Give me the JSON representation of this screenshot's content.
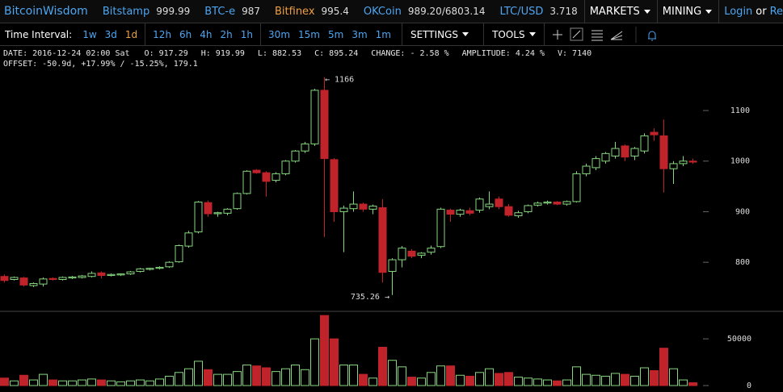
{
  "header": {
    "brand": "BitcoinWisdom",
    "tickers": [
      {
        "name": "Bitstamp",
        "price": "999.99",
        "highlight": false
      },
      {
        "name": "BTC-e",
        "price": "987",
        "highlight": false
      },
      {
        "name": "Bitfinex",
        "price": "995.4",
        "highlight": true
      },
      {
        "name": "OKCoin",
        "price": "989.20/6803.14",
        "highlight": false
      },
      {
        "name": "LTC/USD",
        "price": "3.718",
        "highlight": false
      }
    ],
    "menus": [
      "MARKETS",
      "MINING"
    ],
    "login": "Login",
    "or": "or",
    "register": "Register"
  },
  "toolbar": {
    "label": "Time Interval:",
    "groups": [
      [
        {
          "label": "1w",
          "active": false
        },
        {
          "label": "3d",
          "active": false
        },
        {
          "label": "1d",
          "active": true
        }
      ],
      [
        {
          "label": "12h",
          "active": false
        },
        {
          "label": "6h",
          "active": false
        },
        {
          "label": "4h",
          "active": false
        },
        {
          "label": "2h",
          "active": false
        },
        {
          "label": "1h",
          "active": false
        }
      ],
      [
        {
          "label": "30m",
          "active": false
        },
        {
          "label": "15m",
          "active": false
        },
        {
          "label": "5m",
          "active": false
        },
        {
          "label": "3m",
          "active": false
        },
        {
          "label": "1m",
          "active": false
        }
      ]
    ],
    "menus": [
      "SETTINGS",
      "TOOLS"
    ]
  },
  "info": [
    "DATE: 2016-12-24 02:00 Sat",
    "O: 917.29",
    "H: 919.99",
    "L: 882.53",
    "C: 895.24",
    "CHANGE: - 2.58 %",
    "AMPLITUDE: 4.24 %",
    "V: 7140"
  ],
  "offset": "OFFSET: -50.9d, +17.99% / -15.25%, 179.1",
  "chart_data": {
    "type": "candlestick",
    "up_color": "#86d67e",
    "down_color": "#c1232b",
    "open": [
      772,
      766,
      769,
      754,
      757,
      768,
      766,
      769,
      770,
      772,
      779,
      774,
      775,
      777,
      782,
      786,
      788,
      791,
      801,
      832,
      860,
      918,
      896,
      897,
      906,
      936,
      982,
      977,
      962,
      975,
      1000,
      1020,
      1034,
      1140,
      1003,
      900,
      906,
      915,
      905,
      908,
      782,
      805,
      822,
      814,
      820,
      831,
      903,
      895,
      902,
      903,
      910,
      925,
      910,
      892,
      900,
      913,
      917,
      919,
      915,
      920,
      975,
      987,
      1000,
      1010,
      1030,
      1010,
      1020,
      1057,
      1050,
      985,
      995,
      1000
    ],
    "high": [
      776,
      772,
      771,
      760,
      770,
      770,
      772,
      773,
      775,
      782,
      782,
      778,
      778,
      783,
      789,
      789,
      792,
      802,
      835,
      862,
      921,
      922,
      900,
      907,
      938,
      982,
      984,
      980,
      978,
      1002,
      1022,
      1038,
      1143,
      1166,
      1006,
      912,
      940,
      918,
      914,
      925,
      808,
      832,
      826,
      820,
      833,
      908,
      906,
      906,
      908,
      928,
      940,
      930,
      915,
      902,
      914,
      920,
      922,
      921,
      922,
      980,
      995,
      1010,
      1018,
      1038,
      1033,
      1028,
      1055,
      1065,
      1082,
      1000,
      1010,
      1005
    ],
    "low": [
      760,
      764,
      752,
      751,
      752,
      764,
      764,
      767,
      768,
      770,
      768,
      772,
      773,
      775,
      780,
      784,
      786,
      789,
      799,
      829,
      857,
      890,
      890,
      893,
      904,
      934,
      975,
      930,
      958,
      972,
      997,
      1016,
      1030,
      850,
      880,
      820,
      900,
      900,
      895,
      760,
      735.26,
      790,
      808,
      808,
      815,
      828,
      880,
      890,
      893,
      898,
      905,
      905,
      890,
      888,
      897,
      910,
      914,
      913,
      912,
      918,
      970,
      982,
      995,
      1005,
      1000,
      1002,
      1015,
      1040,
      938,
      955,
      990,
      995
    ],
    "close": [
      764,
      770,
      755,
      758,
      767,
      766,
      770,
      771,
      773,
      778,
      774,
      776,
      777,
      781,
      787,
      788,
      790,
      800,
      833,
      858,
      919,
      896,
      898,
      905,
      936,
      980,
      977,
      960,
      975,
      1000,
      1020,
      1034,
      1140,
      1005,
      900,
      907,
      915,
      905,
      911,
      780,
      805,
      828,
      812,
      818,
      828,
      905,
      895,
      903,
      897,
      925,
      915,
      910,
      893,
      898,
      912,
      917,
      919,
      915,
      920,
      975,
      990,
      1005,
      1015,
      1025,
      1008,
      1025,
      1050,
      1052,
      985,
      995,
      1000,
      998
    ],
    "volume": [
      8000,
      5000,
      11000,
      6000,
      12000,
      6000,
      5000,
      5000,
      6000,
      7000,
      6000,
      5000,
      4000,
      5000,
      6000,
      5000,
      7000,
      10000,
      14000,
      18000,
      26000,
      17000,
      12000,
      12000,
      15000,
      22000,
      21000,
      19000,
      15000,
      18000,
      22000,
      17000,
      50000,
      75000,
      50000,
      22000,
      22000,
      12000,
      8000,
      41000,
      27000,
      20000,
      9000,
      8000,
      14000,
      21000,
      21000,
      11000,
      10000,
      14000,
      18000,
      13000,
      14000,
      9000,
      8000,
      7000,
      6000,
      5000,
      6000,
      20000,
      12000,
      11000,
      10000,
      13000,
      12000,
      10000,
      19000,
      16000,
      40000,
      18000,
      6000,
      3000
    ],
    "ylim": [
      703,
      1175
    ],
    "yticks": [
      800,
      900,
      1000,
      1100
    ],
    "y2lim": [
      0,
      76000
    ],
    "y2ticks": [
      0,
      50000
    ],
    "grid": false,
    "annotations": [
      "← 1166",
      "735.26 →"
    ]
  }
}
